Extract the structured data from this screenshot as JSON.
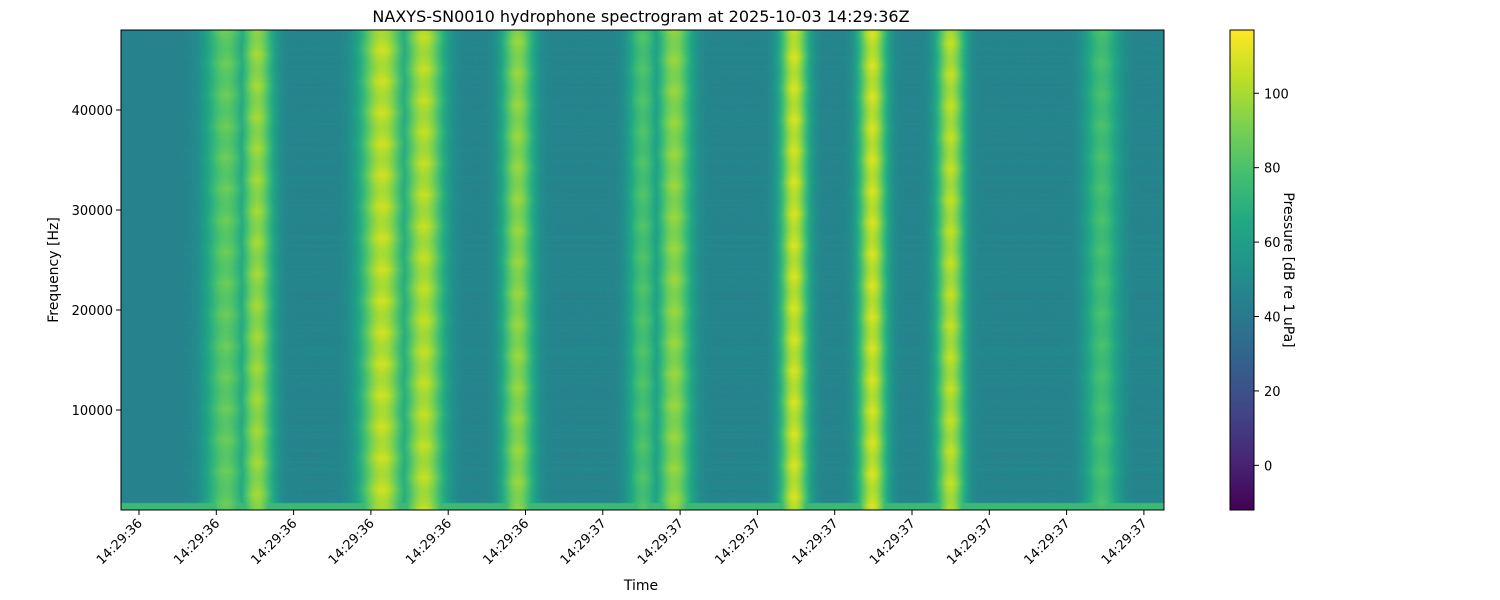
{
  "chart_data": {
    "type": "heatmap",
    "title": "NAXYS-SN0010 hydrophone spectrogram at 2025-10-03 14:29:36Z",
    "xlabel": "Time",
    "ylabel": "Frequency [Hz]",
    "x_tick_labels": [
      "14:29:36",
      "14:29:36",
      "14:29:36",
      "14:29:36",
      "14:29:36",
      "14:29:36",
      "14:29:37",
      "14:29:37",
      "14:29:37",
      "14:29:37",
      "14:29:37",
      "14:29:37",
      "14:29:37",
      "14:29:37"
    ],
    "y_ticks": [
      10000,
      20000,
      30000,
      40000
    ],
    "ylim": [
      0,
      48000
    ],
    "colormap": "viridis",
    "colorbar": {
      "label": "Pressure [dB re 1 uPa]",
      "range": [
        -12,
        117
      ],
      "ticks": [
        0,
        20,
        40,
        60,
        80,
        100
      ]
    },
    "background_level_db": 45,
    "tonal_bands": [
      {
        "center": 0.1,
        "width": 0.02,
        "level_db": 88
      },
      {
        "center": 0.13,
        "width": 0.016,
        "level_db": 100
      },
      {
        "center": 0.25,
        "width": 0.022,
        "level_db": 108
      },
      {
        "center": 0.29,
        "width": 0.02,
        "level_db": 106
      },
      {
        "center": 0.38,
        "width": 0.016,
        "level_db": 98
      },
      {
        "center": 0.5,
        "width": 0.015,
        "level_db": 82
      },
      {
        "center": 0.53,
        "width": 0.017,
        "level_db": 98
      },
      {
        "center": 0.645,
        "width": 0.014,
        "level_db": 110
      },
      {
        "center": 0.72,
        "width": 0.014,
        "level_db": 110
      },
      {
        "center": 0.795,
        "width": 0.014,
        "level_db": 106
      },
      {
        "center": 0.94,
        "width": 0.017,
        "level_db": 80
      }
    ]
  }
}
